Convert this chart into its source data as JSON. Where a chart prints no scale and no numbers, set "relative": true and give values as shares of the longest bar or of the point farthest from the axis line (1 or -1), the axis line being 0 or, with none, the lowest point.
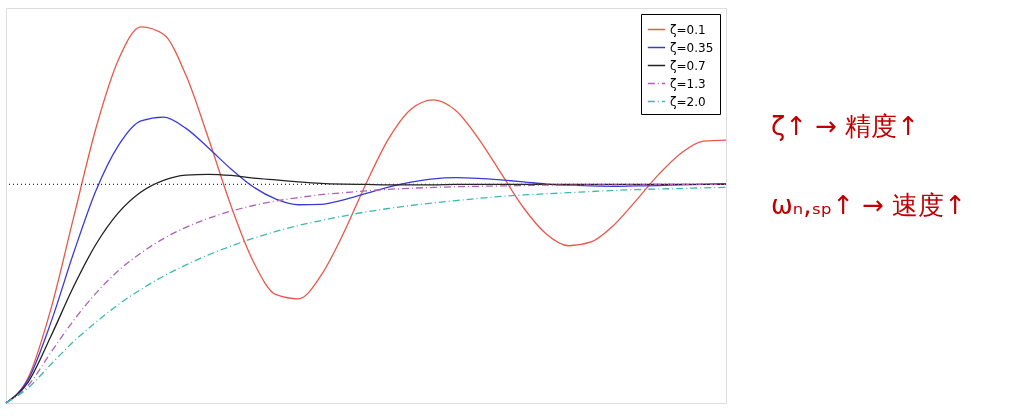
{
  "chart_data": {
    "type": "line",
    "relative": true,
    "legend": "top right",
    "categories": [
      null,
      null,
      null,
      null,
      null,
      null,
      null,
      null,
      null,
      null,
      null,
      null,
      null,
      null,
      null,
      null,
      null,
      null,
      null,
      null,
      null,
      null,
      null,
      null,
      null,
      null,
      null,
      null,
      null,
      null,
      null,
      null,
      null
    ],
    "series": [
      {
        "name": "ζ=0.1",
        "color": "#e8584a",
        "line_style": "solid",
        "values": [
          0,
          0.069,
          0.251,
          0.492,
          0.731,
          0.913,
          1,
          0.98,
          0.871,
          0.703,
          0.524,
          0.375,
          0.288,
          0.277,
          0.339,
          0.451,
          0.583,
          0.702,
          0.781,
          0.806,
          0.777,
          0.703,
          0.611,
          0.519,
          0.45,
          0.418,
          0.428,
          0.472,
          0.538,
          0.607,
          0.664,
          0.696,
          0.699
        ]
      },
      {
        "name": "ζ=0.35",
        "color": "#3a3ad8",
        "line_style": "solid",
        "values": [
          0,
          0.064,
          0.215,
          0.398,
          0.565,
          0.685,
          0.75,
          0.76,
          0.73,
          0.678,
          0.622,
          0.574,
          0.542,
          0.527,
          0.528,
          0.54,
          0.557,
          0.574,
          0.587,
          0.596,
          0.599,
          0.597,
          0.593,
          0.588,
          0.582,
          0.579,
          0.577,
          0.576,
          0.577,
          0.578,
          0.58,
          0.581,
          0.583
        ]
      },
      {
        "name": "ζ=0.7",
        "color": "#222222",
        "line_style": "solid",
        "values": [
          0,
          0.057,
          0.178,
          0.309,
          0.422,
          0.506,
          0.561,
          0.592,
          0.606,
          0.608,
          0.605,
          0.598,
          0.593,
          0.588,
          0.584,
          0.582,
          0.581,
          0.58,
          0.58,
          0.58,
          0.581,
          0.581,
          0.581,
          0.581,
          0.581,
          0.581,
          0.581,
          0.581,
          0.581,
          0.581,
          0.581,
          0.581,
          0.581
        ]
      },
      {
        "name": "ζ=1.3",
        "color": "#b060b8",
        "line_style": "dashed",
        "values": [
          0,
          0.048,
          0.135,
          0.219,
          0.292,
          0.352,
          0.399,
          0.437,
          0.467,
          0.491,
          0.51,
          0.525,
          0.537,
          0.546,
          0.554,
          0.559,
          0.564,
          0.568,
          0.571,
          0.573,
          0.575,
          0.576,
          0.577,
          0.578,
          0.579,
          0.579,
          0.58,
          0.58,
          0.58,
          0.581,
          0.581,
          0.581,
          0.581
        ]
      },
      {
        "name": "ζ=2.0",
        "color": "#3cb8b2",
        "line_style": "dashed",
        "values": [
          0,
          0.041,
          0.103,
          0.163,
          0.215,
          0.262,
          0.302,
          0.337,
          0.367,
          0.394,
          0.417,
          0.438,
          0.456,
          0.472,
          0.485,
          0.497,
          0.508,
          0.517,
          0.525,
          0.532,
          0.538,
          0.544,
          0.549,
          0.553,
          0.556,
          0.559,
          0.562,
          0.565,
          0.567,
          0.569,
          0.57,
          0.572,
          0.573
        ]
      }
    ],
    "ref_lines": [
      {
        "axis": "y",
        "value": 0.581,
        "color": "#333333",
        "line_style": "dotted"
      }
    ],
    "annotations": [
      "ζ↑ → 精度↑",
      "ωₙ,ₛₚ↑ → 速度↑"
    ]
  }
}
